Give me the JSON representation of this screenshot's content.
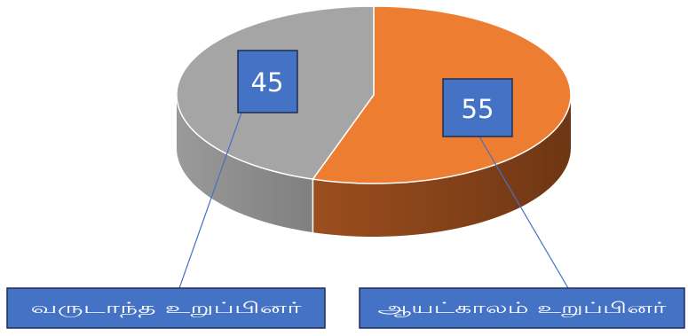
{
  "chart_data": {
    "type": "pie",
    "title": "",
    "categories": [
      "வருடாந்த உறுப்பினர்",
      "ஆயட்காலம் உறுப்பினர்"
    ],
    "values": [
      45,
      55
    ],
    "value_labels": [
      "45",
      "55"
    ],
    "colors": {
      "slice_top": [
        "#a5a5a5",
        "#ed7d31"
      ],
      "slice_side": [
        "#7f7f7f",
        "#9c4e1e"
      ],
      "label_box_fill": "#4472c4",
      "label_box_border": "#1f2d55",
      "leader_line": "#4472c4",
      "label_text": "#ffffff"
    },
    "style": "3d",
    "legend": "none",
    "grid": false
  }
}
